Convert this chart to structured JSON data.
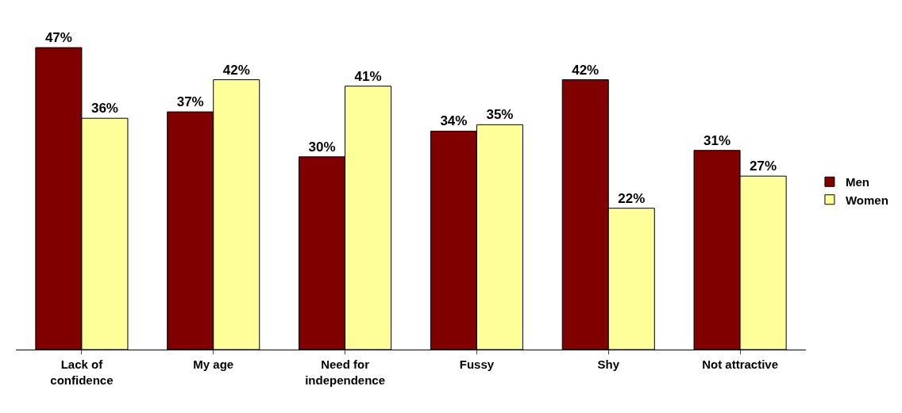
{
  "chart_data": {
    "type": "bar",
    "categories": [
      "Lack of confidence",
      "My age",
      "Need for independence",
      "Fussy",
      "Shy",
      "Not attractive"
    ],
    "series": [
      {
        "name": "Men",
        "color": "#800000",
        "values": [
          47,
          37,
          30,
          34,
          42,
          31
        ],
        "value_labels": [
          "47%",
          "37%",
          "30%",
          "34%",
          "42%",
          "31%"
        ]
      },
      {
        "name": "Women",
        "color": "#ffff99",
        "values": [
          36,
          42,
          41,
          35,
          22,
          27
        ],
        "value_labels": [
          "36%",
          "42%",
          "41%",
          "35%",
          "22%",
          "27%"
        ]
      }
    ],
    "legend": "right"
  }
}
